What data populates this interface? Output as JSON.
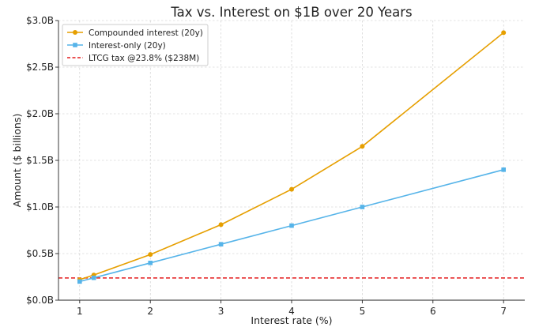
{
  "chart_data": {
    "type": "line",
    "title": "Tax vs. Interest on $1B over 20 Years",
    "xlabel": "Interest rate (%)",
    "ylabel": "Amount ($ billions)",
    "xlim": [
      0.7,
      7.3
    ],
    "ylim": [
      0.0,
      3.0
    ],
    "xticks": [
      1,
      2,
      3,
      4,
      5,
      6,
      7
    ],
    "xtick_labels": [
      "1",
      "2",
      "3",
      "4",
      "5",
      "6",
      "7"
    ],
    "yticks": [
      0.0,
      0.5,
      1.0,
      1.5,
      2.0,
      2.5,
      3.0
    ],
    "ytick_labels": [
      "$0.0B",
      "$0.5B",
      "$1.0B",
      "$1.5B",
      "$2.0B",
      "$2.5B",
      "$3.0B"
    ],
    "grid": true,
    "legend_position": "top-left",
    "series": [
      {
        "name": "Compounded interest (20y)",
        "color": "#e69f00",
        "marker": "circle",
        "x": [
          1,
          1.2,
          2,
          3,
          4,
          5,
          7
        ],
        "y": [
          0.22,
          0.27,
          0.49,
          0.81,
          1.19,
          1.65,
          2.87
        ]
      },
      {
        "name": "Interest-only (20y)",
        "color": "#56b4e9",
        "marker": "square",
        "x": [
          1,
          1.2,
          2,
          3,
          4,
          5,
          7
        ],
        "y": [
          0.2,
          0.24,
          0.4,
          0.6,
          0.8,
          1.0,
          1.4
        ]
      }
    ],
    "reference_lines": [
      {
        "name": "LTCG tax @23.8% ($238M)",
        "color": "#e31a1c",
        "style": "dashed",
        "y": 0.238
      }
    ]
  }
}
